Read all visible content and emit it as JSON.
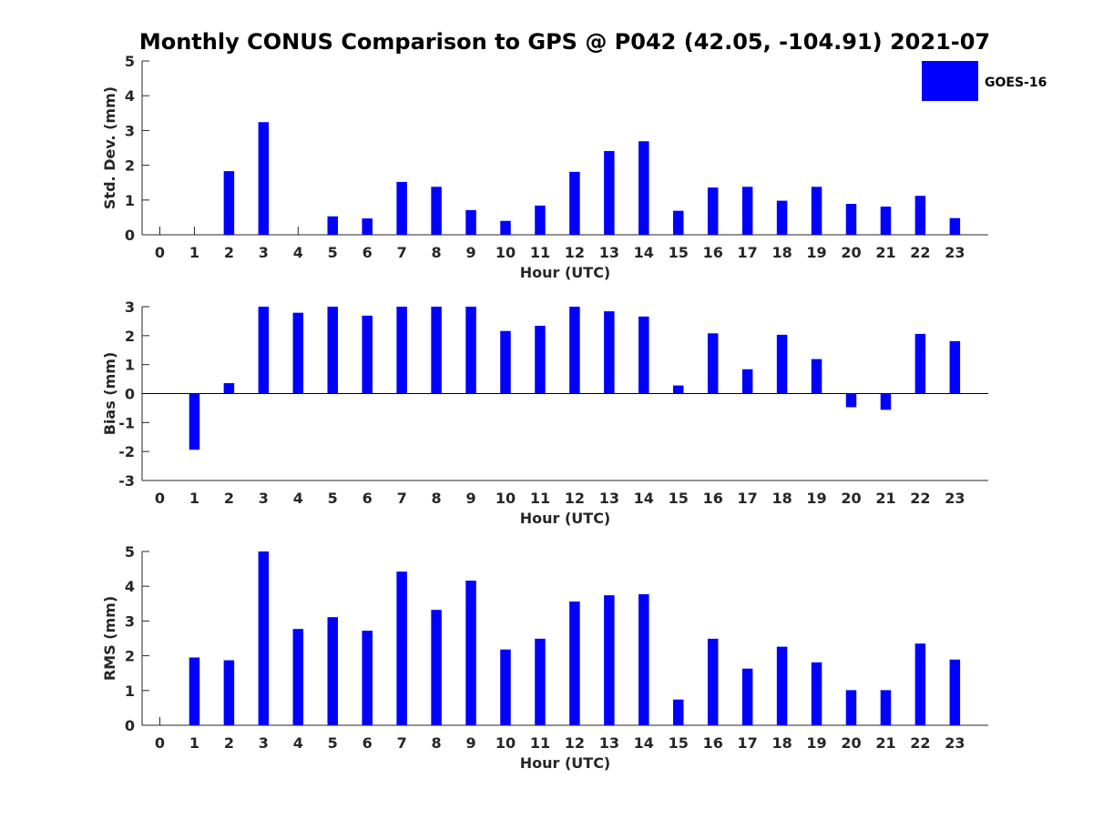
{
  "title": "Monthly CONUS Comparison to GPS @ P042 (42.05, -104.91) 2021-07",
  "legend": {
    "label": "GOES-16",
    "color": "#0000ff"
  },
  "chart_data": [
    {
      "type": "bar",
      "ylabel": "Std. Dev. (mm)",
      "xlabel": "Hour (UTC)",
      "ylim": [
        0,
        5
      ],
      "yticks": [
        0,
        1,
        2,
        3,
        4,
        5
      ],
      "categories": [
        "0",
        "1",
        "2",
        "3",
        "4",
        "5",
        "6",
        "7",
        "8",
        "9",
        "10",
        "11",
        "12",
        "13",
        "14",
        "15",
        "16",
        "17",
        "18",
        "19",
        "20",
        "21",
        "22",
        "23"
      ],
      "series": [
        {
          "name": "GOES-16",
          "color": "#0000ff",
          "values": [
            null,
            null,
            1.83,
            3.24,
            null,
            0.53,
            0.47,
            1.52,
            1.38,
            0.71,
            0.4,
            0.84,
            1.81,
            2.41,
            2.69,
            0.69,
            1.36,
            1.38,
            0.98,
            1.38,
            0.89,
            0.81,
            1.12,
            0.48
          ]
        }
      ],
      "zero_markers": [
        "0",
        "1",
        "4"
      ]
    },
    {
      "type": "bar",
      "ylabel": "Bias (mm)",
      "xlabel": "Hour (UTC)",
      "ylim": [
        -3,
        3
      ],
      "yticks": [
        -3,
        -2,
        -1,
        0,
        1,
        2,
        3
      ],
      "categories": [
        "0",
        "1",
        "2",
        "3",
        "4",
        "5",
        "6",
        "7",
        "8",
        "9",
        "10",
        "11",
        "12",
        "13",
        "14",
        "15",
        "16",
        "17",
        "18",
        "19",
        "20",
        "21",
        "22",
        "23"
      ],
      "series": [
        {
          "name": "GOES-16",
          "color": "#0000ff",
          "values": [
            null,
            -1.94,
            0.36,
            3.0,
            2.79,
            3.0,
            2.69,
            3.0,
            3.0,
            3.0,
            2.16,
            2.34,
            3.0,
            2.84,
            2.66,
            0.28,
            2.08,
            0.84,
            2.03,
            1.19,
            -0.47,
            -0.56,
            2.06,
            1.81
          ]
        }
      ],
      "zero_line": true
    },
    {
      "type": "bar",
      "ylabel": "RMS (mm)",
      "xlabel": "Hour (UTC)",
      "ylim": [
        0,
        5
      ],
      "yticks": [
        0,
        1,
        2,
        3,
        4,
        5
      ],
      "categories": [
        "0",
        "1",
        "2",
        "3",
        "4",
        "5",
        "6",
        "7",
        "8",
        "9",
        "10",
        "11",
        "12",
        "13",
        "14",
        "15",
        "16",
        "17",
        "18",
        "19",
        "20",
        "21",
        "22",
        "23"
      ],
      "series": [
        {
          "name": "GOES-16",
          "color": "#0000ff",
          "values": [
            null,
            1.95,
            1.87,
            5.0,
            2.77,
            3.11,
            2.72,
            4.42,
            3.32,
            4.16,
            2.18,
            2.49,
            3.56,
            3.74,
            3.77,
            0.74,
            2.49,
            1.63,
            2.26,
            1.81,
            1.01,
            1.01,
            2.35,
            1.89
          ]
        }
      ],
      "zero_markers": [
        "0"
      ]
    }
  ]
}
